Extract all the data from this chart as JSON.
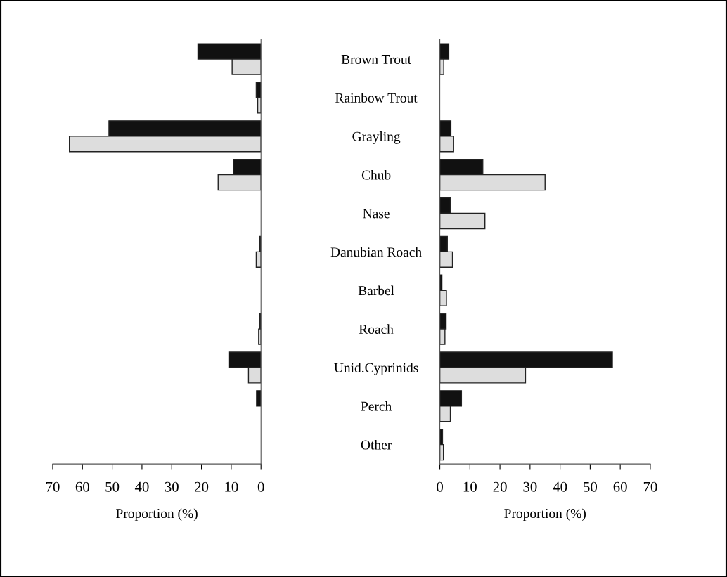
{
  "chart_data": [
    {
      "type": "bar",
      "orientation": "horizontal",
      "xlabel": "Proportion (%)",
      "categories": [
        "Brown Trout",
        "Rainbow Trout",
        "Grayling",
        "Chub",
        "Nase",
        "Danubian Roach",
        "Barbel",
        "Roach",
        "Unid.Cyprinids",
        "Perch",
        "Other"
      ],
      "series": [
        {
          "color": "#111111",
          "values": [
            21.2,
            1.6,
            51.1,
            9.3,
            0,
            0.4,
            0,
            0.4,
            10.8,
            1.5,
            0
          ]
        },
        {
          "color": "#dddddd",
          "values": [
            9.7,
            1.1,
            64.4,
            14.4,
            0,
            1.6,
            0,
            0.8,
            4.2,
            0,
            0
          ]
        }
      ],
      "xlim": [
        70,
        0
      ],
      "xticks": [
        70,
        60,
        50,
        40,
        30,
        20,
        10,
        0
      ],
      "grid": false,
      "legend": false
    },
    {
      "type": "bar",
      "orientation": "horizontal",
      "xlabel": "Proportion (%)",
      "categories": [
        null,
        null,
        null,
        null,
        null,
        null,
        null,
        null,
        null,
        null,
        null
      ],
      "series": [
        {
          "color": "#111111",
          "values": [
            3.0,
            0,
            3.7,
            14.3,
            3.5,
            2.5,
            0.7,
            2.1,
            57.4,
            7.2,
            0.9
          ]
        },
        {
          "color": "#dddddd",
          "values": [
            1.3,
            0,
            4.6,
            35.0,
            15.0,
            4.2,
            2.2,
            1.7,
            28.5,
            3.5,
            1.2
          ]
        }
      ],
      "xlim": [
        0,
        70
      ],
      "xticks": [
        0,
        10,
        20,
        30,
        40,
        50,
        60,
        70
      ],
      "grid": false,
      "legend": false
    }
  ]
}
